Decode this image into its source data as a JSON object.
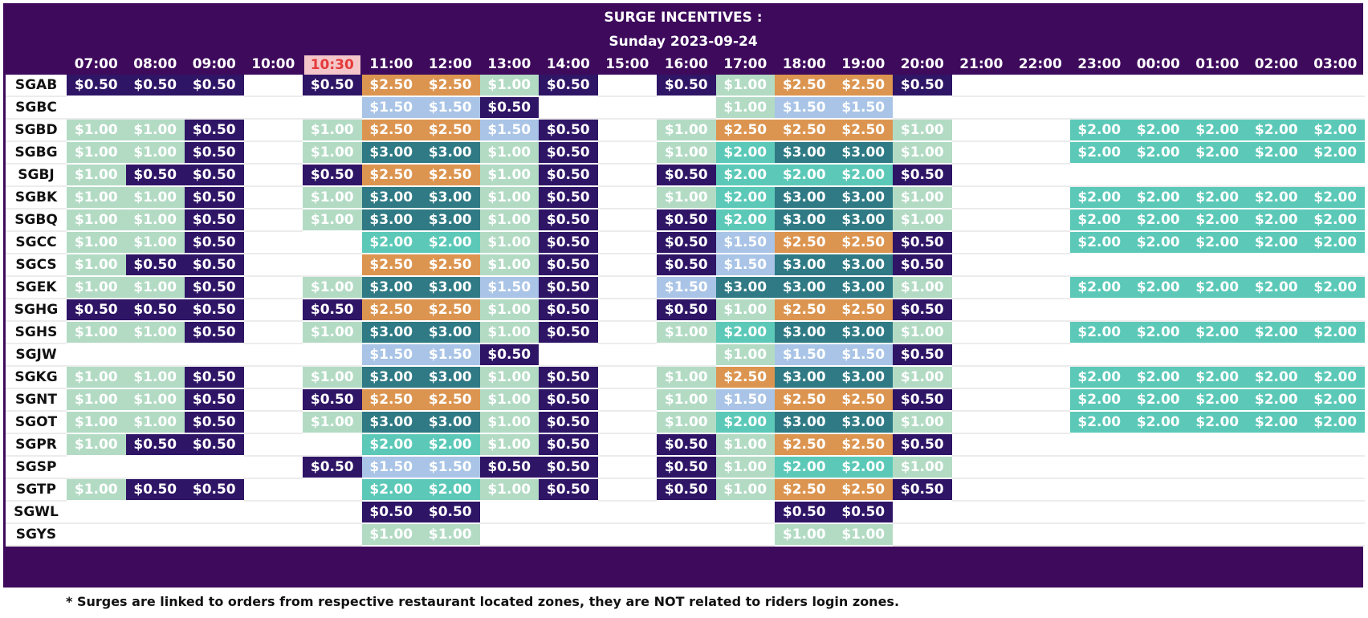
{
  "header": {
    "title": "SURGE INCENTIVES :",
    "subtitle": "Sunday 2023-09-24"
  },
  "current_time_label": "10:30",
  "times": [
    "07:00",
    "08:00",
    "09:00",
    "10:00",
    "10:30",
    "11:00",
    "12:00",
    "13:00",
    "14:00",
    "15:00",
    "16:00",
    "17:00",
    "18:00",
    "19:00",
    "20:00",
    "21:00",
    "22:00",
    "23:00",
    "00:00",
    "01:00",
    "02:00",
    "03:00"
  ],
  "rate_colors": {
    "$0.50": "#2f1566",
    "$1.00": "#b3dbc4",
    "$1.50": "#a9c4e6",
    "$2.00": "#5cc9b8",
    "$2.50": "#dc9550",
    "$3.00": "#2f7a84"
  },
  "rows": [
    {
      "zone": "SGAB",
      "cells": [
        "$0.50",
        "$0.50",
        "$0.50",
        "",
        "$0.50",
        "$2.50",
        "$2.50",
        "$1.00",
        "$0.50",
        "",
        "$0.50",
        "$1.00",
        "$2.50",
        "$2.50",
        "$0.50",
        "",
        "",
        "",
        "",
        "",
        "",
        ""
      ]
    },
    {
      "zone": "SGBC",
      "cells": [
        "",
        "",
        "",
        "",
        "",
        "$1.50",
        "$1.50",
        "$0.50",
        "",
        "",
        "",
        "$1.00",
        "$1.50",
        "$1.50",
        "",
        "",
        "",
        "",
        "",
        "",
        "",
        ""
      ]
    },
    {
      "zone": "SGBD",
      "cells": [
        "$1.00",
        "$1.00",
        "$0.50",
        "",
        "$1.00",
        "$2.50",
        "$2.50",
        "$1.50",
        "$0.50",
        "",
        "$1.00",
        "$2.50",
        "$2.50",
        "$2.50",
        "$1.00",
        "",
        "",
        "$2.00",
        "$2.00",
        "$2.00",
        "$2.00",
        "$2.00"
      ]
    },
    {
      "zone": "SGBG",
      "cells": [
        "$1.00",
        "$1.00",
        "$0.50",
        "",
        "$1.00",
        "$3.00",
        "$3.00",
        "$1.00",
        "$0.50",
        "",
        "$1.00",
        "$2.00",
        "$3.00",
        "$3.00",
        "$1.00",
        "",
        "",
        "$2.00",
        "$2.00",
        "$2.00",
        "$2.00",
        "$2.00"
      ]
    },
    {
      "zone": "SGBJ",
      "cells": [
        "$1.00",
        "$0.50",
        "$0.50",
        "",
        "$0.50",
        "$2.50",
        "$2.50",
        "$1.00",
        "$0.50",
        "",
        "$0.50",
        "$2.00",
        "$2.00",
        "$2.00",
        "$0.50",
        "",
        "",
        "",
        "",
        "",
        "",
        ""
      ]
    },
    {
      "zone": "SGBK",
      "cells": [
        "$1.00",
        "$1.00",
        "$0.50",
        "",
        "$1.00",
        "$3.00",
        "$3.00",
        "$1.00",
        "$0.50",
        "",
        "$1.00",
        "$2.00",
        "$3.00",
        "$3.00",
        "$1.00",
        "",
        "",
        "$2.00",
        "$2.00",
        "$2.00",
        "$2.00",
        "$2.00"
      ]
    },
    {
      "zone": "SGBQ",
      "cells": [
        "$1.00",
        "$1.00",
        "$0.50",
        "",
        "$1.00",
        "$3.00",
        "$3.00",
        "$1.00",
        "$0.50",
        "",
        "$0.50",
        "$2.00",
        "$3.00",
        "$3.00",
        "$1.00",
        "",
        "",
        "$2.00",
        "$2.00",
        "$2.00",
        "$2.00",
        "$2.00"
      ]
    },
    {
      "zone": "SGCC",
      "cells": [
        "$1.00",
        "$1.00",
        "$0.50",
        "",
        "",
        "$2.00",
        "$2.00",
        "$1.00",
        "$0.50",
        "",
        "$0.50",
        "$1.50",
        "$2.50",
        "$2.50",
        "$0.50",
        "",
        "",
        "$2.00",
        "$2.00",
        "$2.00",
        "$2.00",
        "$2.00"
      ]
    },
    {
      "zone": "SGCS",
      "cells": [
        "$1.00",
        "$0.50",
        "$0.50",
        "",
        "",
        "$2.50",
        "$2.50",
        "$1.00",
        "$0.50",
        "",
        "$0.50",
        "$1.50",
        "$3.00",
        "$3.00",
        "$0.50",
        "",
        "",
        "",
        "",
        "",
        "",
        ""
      ]
    },
    {
      "zone": "SGEK",
      "cells": [
        "$1.00",
        "$1.00",
        "$0.50",
        "",
        "$1.00",
        "$3.00",
        "$3.00",
        "$1.50",
        "$0.50",
        "",
        "$1.50",
        "$3.00",
        "$3.00",
        "$3.00",
        "$1.00",
        "",
        "",
        "$2.00",
        "$2.00",
        "$2.00",
        "$2.00",
        "$2.00"
      ]
    },
    {
      "zone": "SGHG",
      "cells": [
        "$0.50",
        "$0.50",
        "$0.50",
        "",
        "$0.50",
        "$2.50",
        "$2.50",
        "$1.00",
        "$0.50",
        "",
        "$0.50",
        "$1.00",
        "$2.50",
        "$2.50",
        "$0.50",
        "",
        "",
        "",
        "",
        "",
        "",
        ""
      ]
    },
    {
      "zone": "SGHS",
      "cells": [
        "$1.00",
        "$1.00",
        "$0.50",
        "",
        "$1.00",
        "$3.00",
        "$3.00",
        "$1.00",
        "$0.50",
        "",
        "$1.00",
        "$2.00",
        "$3.00",
        "$3.00",
        "$1.00",
        "",
        "",
        "$2.00",
        "$2.00",
        "$2.00",
        "$2.00",
        "$2.00"
      ]
    },
    {
      "zone": "SGJW",
      "cells": [
        "",
        "",
        "",
        "",
        "",
        "$1.50",
        "$1.50",
        "$0.50",
        "",
        "",
        "",
        "$1.00",
        "$1.50",
        "$1.50",
        "$0.50",
        "",
        "",
        "",
        "",
        "",
        "",
        ""
      ]
    },
    {
      "zone": "SGKG",
      "cells": [
        "$1.00",
        "$1.00",
        "$0.50",
        "",
        "$1.00",
        "$3.00",
        "$3.00",
        "$1.00",
        "$0.50",
        "",
        "$1.00",
        "$2.50",
        "$3.00",
        "$3.00",
        "$1.00",
        "",
        "",
        "$2.00",
        "$2.00",
        "$2.00",
        "$2.00",
        "$2.00"
      ]
    },
    {
      "zone": "SGNT",
      "cells": [
        "$1.00",
        "$1.00",
        "$0.50",
        "",
        "$0.50",
        "$2.50",
        "$2.50",
        "$1.00",
        "$0.50",
        "",
        "$1.00",
        "$1.50",
        "$2.50",
        "$2.50",
        "$0.50",
        "",
        "",
        "$2.00",
        "$2.00",
        "$2.00",
        "$2.00",
        "$2.00"
      ]
    },
    {
      "zone": "SGOT",
      "cells": [
        "$1.00",
        "$1.00",
        "$0.50",
        "",
        "$1.00",
        "$3.00",
        "$3.00",
        "$1.00",
        "$0.50",
        "",
        "$1.00",
        "$2.00",
        "$3.00",
        "$3.00",
        "$1.00",
        "",
        "",
        "$2.00",
        "$2.00",
        "$2.00",
        "$2.00",
        "$2.00"
      ]
    },
    {
      "zone": "SGPR",
      "cells": [
        "$1.00",
        "$0.50",
        "$0.50",
        "",
        "",
        "$2.00",
        "$2.00",
        "$1.00",
        "$0.50",
        "",
        "$0.50",
        "$1.00",
        "$2.50",
        "$2.50",
        "$0.50",
        "",
        "",
        "",
        "",
        "",
        "",
        ""
      ]
    },
    {
      "zone": "SGSP",
      "cells": [
        "",
        "",
        "",
        "",
        "$0.50",
        "$1.50",
        "$1.50",
        "$0.50",
        "$0.50",
        "",
        "$0.50",
        "$1.00",
        "$2.00",
        "$2.00",
        "$1.00",
        "",
        "",
        "",
        "",
        "",
        "",
        ""
      ]
    },
    {
      "zone": "SGTP",
      "cells": [
        "$1.00",
        "$0.50",
        "$0.50",
        "",
        "",
        "$2.00",
        "$2.00",
        "$1.00",
        "$0.50",
        "",
        "$0.50",
        "$1.00",
        "$2.50",
        "$2.50",
        "$0.50",
        "",
        "",
        "",
        "",
        "",
        "",
        ""
      ]
    },
    {
      "zone": "SGWL",
      "cells": [
        "",
        "",
        "",
        "",
        "",
        "$0.50",
        "$0.50",
        "",
        "",
        "",
        "",
        "",
        "$0.50",
        "$0.50",
        "",
        "",
        "",
        "",
        "",
        "",
        "",
        ""
      ]
    },
    {
      "zone": "SGYS",
      "cells": [
        "",
        "",
        "",
        "",
        "",
        "$1.00",
        "$1.00",
        "",
        "",
        "",
        "",
        "",
        "$1.00",
        "$1.00",
        "",
        "",
        "",
        "",
        "",
        "",
        "",
        ""
      ]
    }
  ],
  "footnote": "* Surges are linked to orders from respective restaurant located zones, they are NOT related to riders login zones."
}
